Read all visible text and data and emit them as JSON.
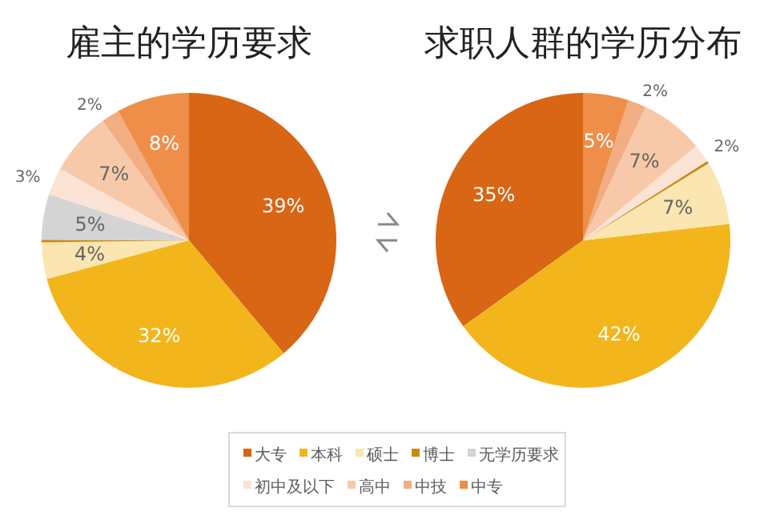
{
  "chart_data": [
    {
      "type": "pie",
      "title": "雇主的学历要求",
      "categories": [
        "大专",
        "本科",
        "硕士",
        "博士",
        "无学历要求",
        "初中及以下",
        "高中",
        "中技",
        "中专"
      ],
      "values": [
        39,
        32,
        4,
        0.3,
        5,
        3,
        7,
        2,
        8
      ],
      "value_labels": [
        "39%",
        "32%",
        "4%",
        null,
        "5%",
        "3%",
        "7%",
        "2%",
        "8%"
      ],
      "colors": [
        "#d86614",
        "#f2b61c",
        "#fbe5b0",
        "#c88a10",
        "#d4d4d4",
        "#fbe3d6",
        "#f8c9a8",
        "#f3ad82",
        "#ee8e48"
      ],
      "legend": "bottom"
    },
    {
      "type": "pie",
      "title": "求职人群的学历分布",
      "categories": [
        null,
        null,
        null,
        null,
        null,
        null,
        null,
        null,
        null
      ],
      "values": [
        35,
        42,
        7,
        0.3,
        0,
        2,
        7,
        2,
        5
      ],
      "value_labels": [
        "35%",
        "42%",
        "7%",
        null,
        null,
        "2%",
        "7%",
        "2%",
        "5%"
      ],
      "colors": [
        "#d86614",
        "#f2b61c",
        "#fbe5b0",
        "#c88a10",
        "#d4d4d4",
        "#fbe3d6",
        "#f8c9a8",
        "#f3ad82",
        "#ee8e48"
      ]
    }
  ]
}
